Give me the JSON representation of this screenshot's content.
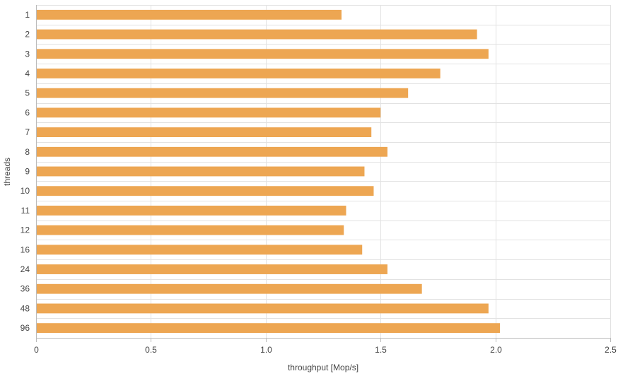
{
  "chart_data": {
    "type": "bar",
    "orientation": "horizontal",
    "title": "",
    "xlabel": "throughput [Mop/s]",
    "ylabel": "threads",
    "categories": [
      "1",
      "2",
      "3",
      "4",
      "5",
      "6",
      "7",
      "8",
      "9",
      "10",
      "11",
      "12",
      "16",
      "24",
      "36",
      "48",
      "96"
    ],
    "values": [
      1.33,
      1.92,
      1.97,
      1.76,
      1.62,
      1.5,
      1.46,
      1.53,
      1.43,
      1.47,
      1.35,
      1.34,
      1.42,
      1.53,
      1.68,
      1.97,
      2.02
    ],
    "xlim": [
      0,
      2.5
    ],
    "xticks": [
      "0",
      "0.5",
      "1.0",
      "1.5",
      "2.0",
      "2.5"
    ],
    "grid": true,
    "legend": "none",
    "colors": {
      "bar": "#eda652",
      "grid": "#e2e2e2",
      "axis": "#bbbbbb",
      "text": "#444444"
    }
  }
}
